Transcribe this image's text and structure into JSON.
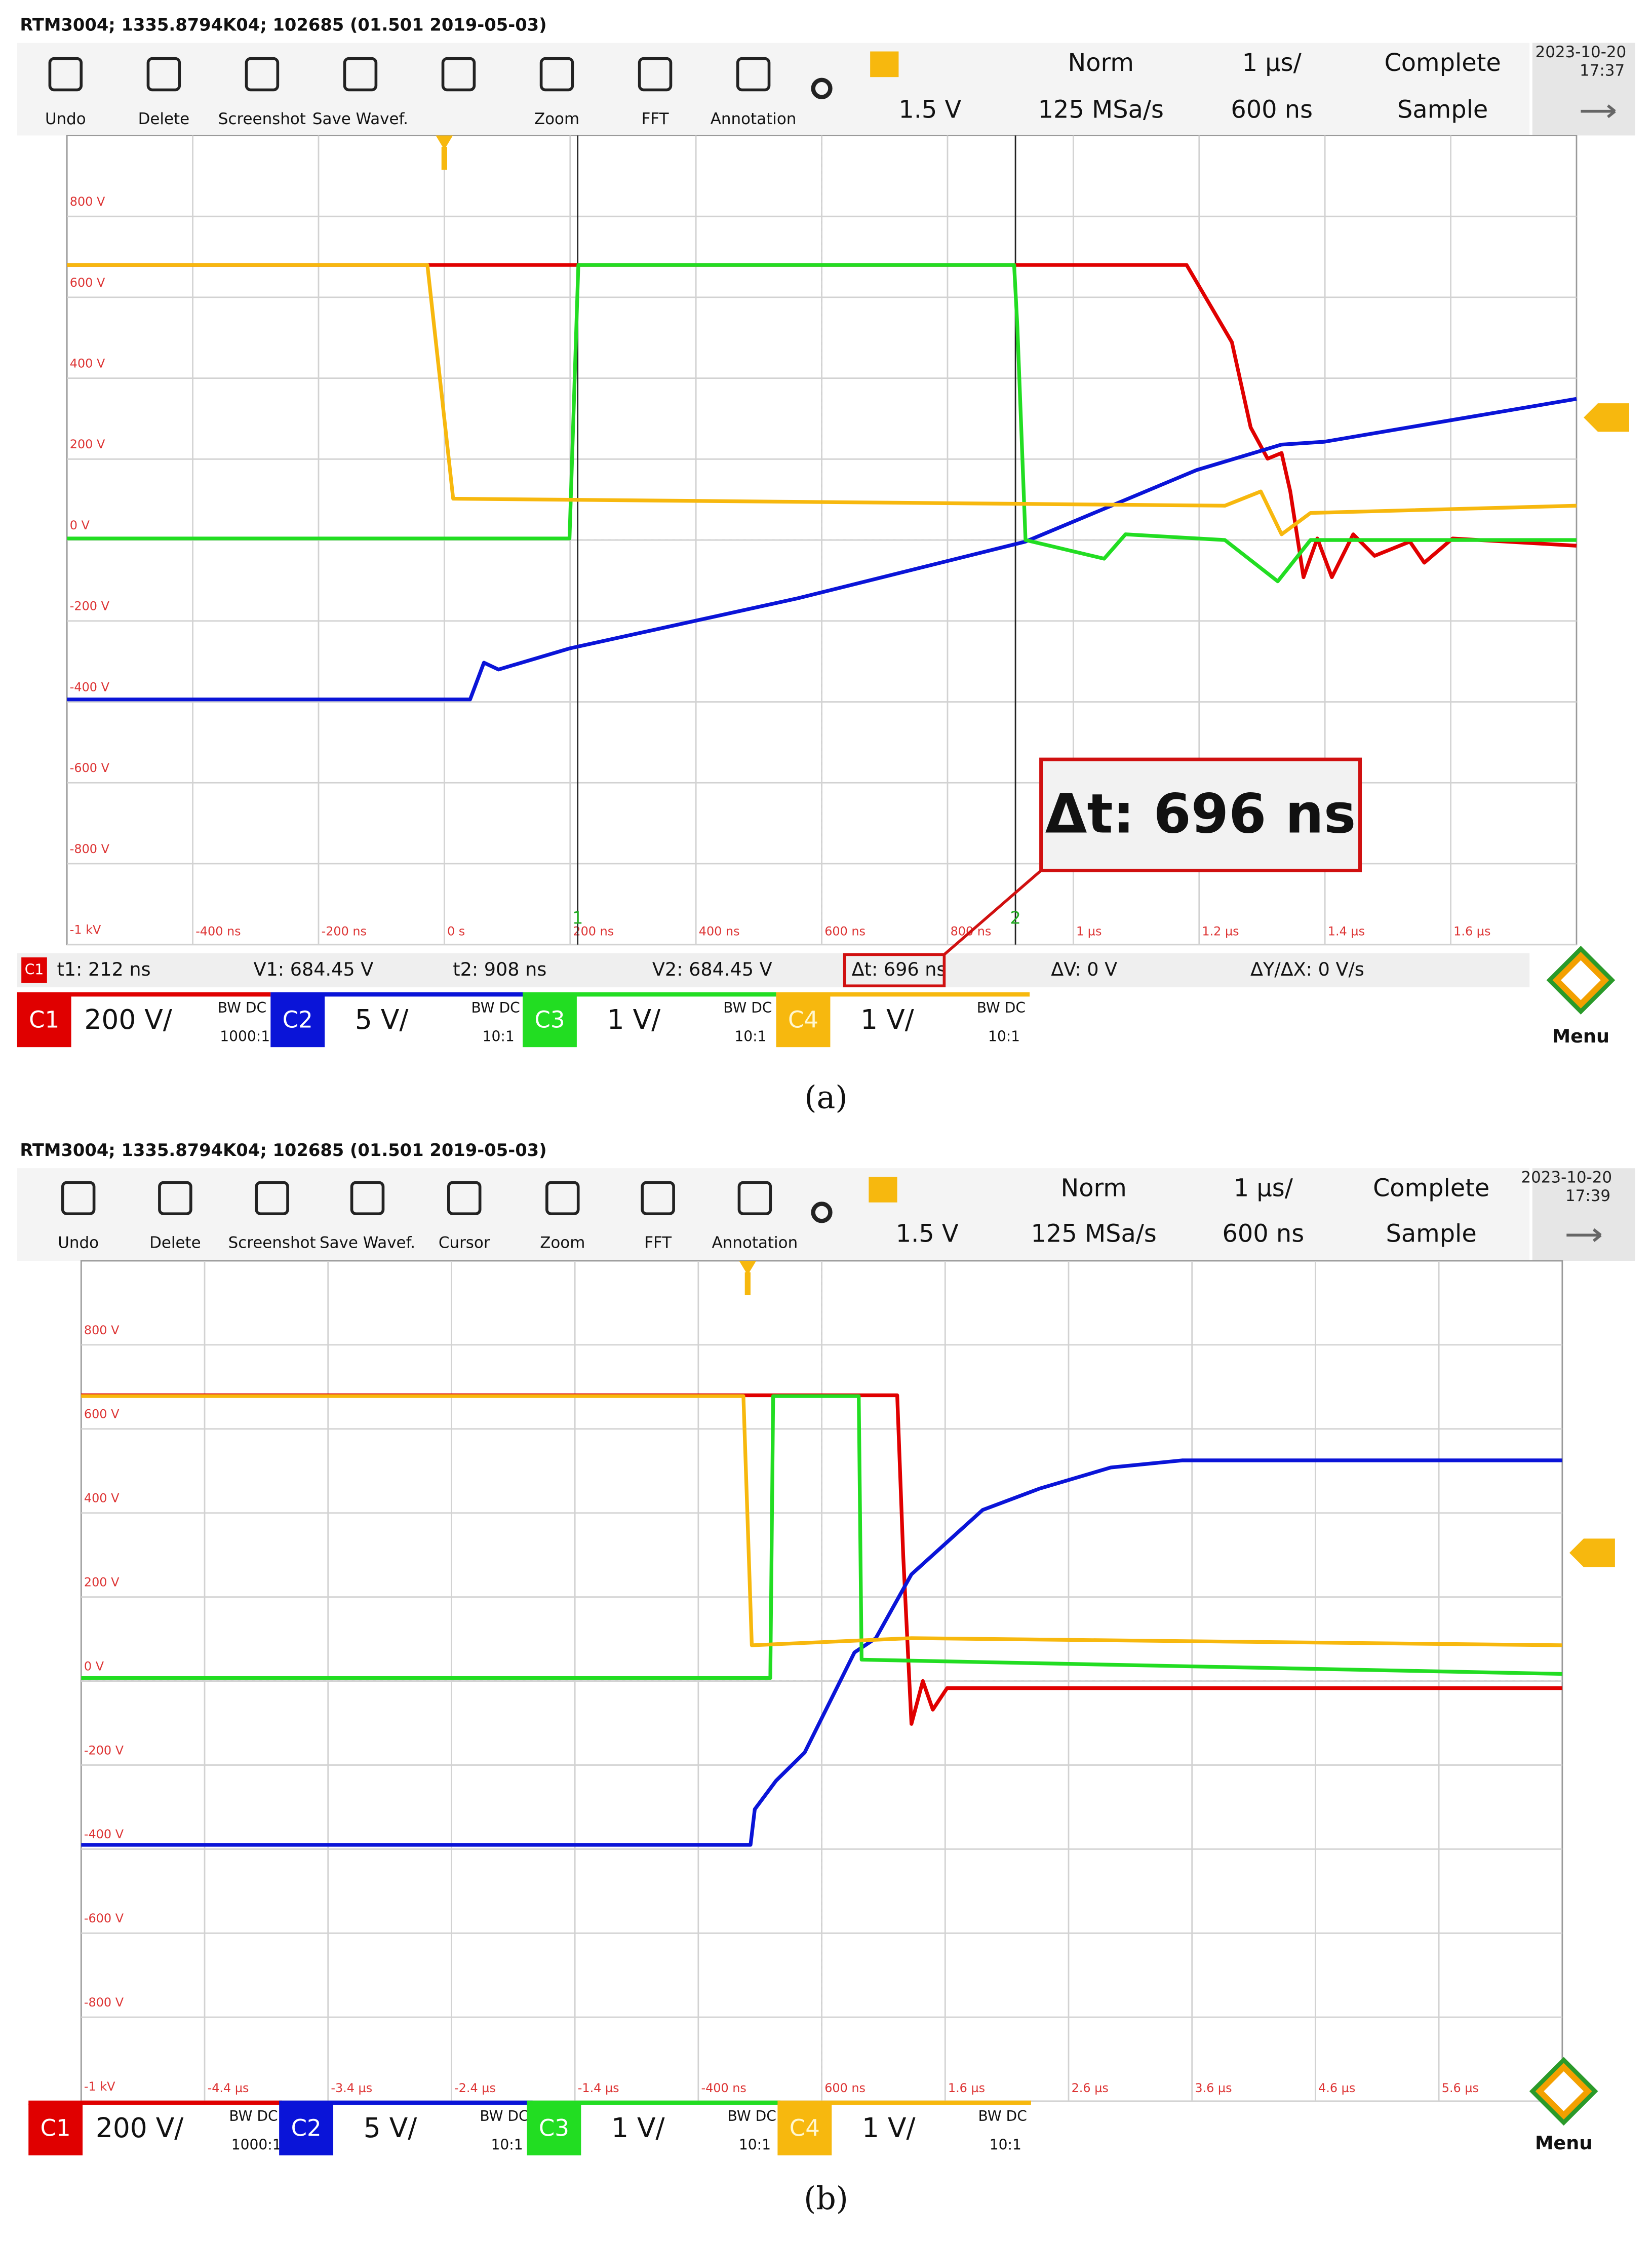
{
  "chart_data": [
    {
      "type": "line",
      "caption": "(a)",
      "header": "RTM3004; 1335.8794K04; 102685 (01.501 2019-05-03)",
      "toolbar": [
        "Undo",
        "Delete",
        "Screenshot",
        "Save Wavef.",
        "Zoom",
        "FFT",
        "Annotation"
      ],
      "trigger": {
        "level": "1.5 V",
        "mode": "Norm",
        "sample_rate": "125 MSa/s",
        "timebase": "1 µs/",
        "position": "600 ns",
        "acquisition": "Complete",
        "decimation": "Sample"
      },
      "date": "2023-10-20",
      "time": "17:37",
      "menu": "Menu",
      "channels": [
        {
          "scale": "200 V/",
          "bandwidth": "BW DC",
          "probe": "1000:1"
        },
        {
          "scale": "5 V/",
          "bandwidth": "BW DC",
          "probe": "10:1"
        },
        {
          "scale": "1 V/",
          "bandwidth": "BW DC",
          "probe": "10:1"
        },
        {
          "scale": "1 V/",
          "bandwidth": "BW DC",
          "probe": "10:1"
        }
      ],
      "cursors": {
        "readout": [
          "t1: 212 ns",
          "V1: 684.45 V",
          "t2: 908 ns",
          "V2: 684.45 V",
          "Δt: 696 ns",
          "ΔV: 0 V",
          "ΔY/ΔX: 0 V/s"
        ],
        "callout": "Δt: 696 ns",
        "markers": [
          {
            "value": 212,
            "label": "1"
          },
          {
            "value": 908,
            "label": "2"
          }
        ]
      },
      "xlim": [
        -600,
        1800
      ],
      "xticks": [
        {
          "value": -400,
          "label": "-400 ns"
        },
        {
          "value": -200,
          "label": "-200 ns"
        },
        {
          "value": 0,
          "label": "0 s"
        },
        {
          "value": 200,
          "label": "200 ns"
        },
        {
          "value": 400,
          "label": "400 ns"
        },
        {
          "value": 600,
          "label": "600 ns"
        },
        {
          "value": 800,
          "label": "800 ns"
        },
        {
          "value": 1000,
          "label": "1 µs"
        },
        {
          "value": 1200,
          "label": "1.2 µs"
        },
        {
          "value": 1400,
          "label": "1.4 µs"
        },
        {
          "value": 1600,
          "label": "1.6 µs"
        }
      ],
      "ylim": [
        -1000,
        1000
      ],
      "yticks": [
        {
          "value": 800,
          "label": "800 V"
        },
        {
          "value": 600,
          "label": "600 V"
        },
        {
          "value": 400,
          "label": "400 V"
        },
        {
          "value": 200,
          "label": "200 V"
        },
        {
          "value": 0,
          "label": "0 V"
        },
        {
          "value": -200,
          "label": "-200 V"
        },
        {
          "value": -400,
          "label": "-400 V"
        },
        {
          "value": -600,
          "label": "-600 V"
        },
        {
          "value": -800,
          "label": "-800 V"
        },
        {
          "value": -1000,
          "label": "-1 kV"
        }
      ],
      "grid": true,
      "series": [
        {
          "name": "C1",
          "color": "#e00000",
          "x": [
            -600,
            1180,
            1252,
            1282,
            1309,
            1331,
            1345,
            1366,
            1388,
            1411,
            1445,
            1479,
            1535,
            1558,
            1603,
            1800
          ],
          "values": [
            680,
            680,
            489,
            278,
            201,
            215,
            120,
            -92,
            4,
            -92,
            14,
            -39,
            -4,
            -56,
            4,
            -14
          ]
        },
        {
          "name": "C2",
          "color": "#0a14d8",
          "x": [
            -600,
            41,
            63,
            86,
            199,
            562,
            924,
            1196,
            1331,
            1399,
            1800
          ],
          "values": [
            -394,
            -394,
            -303,
            -320,
            -268,
            -144,
            -4,
            173,
            236,
            243,
            349
          ]
        },
        {
          "name": "C3",
          "color": "#22dd22",
          "x": [
            -600,
            199,
            213,
            906,
            911,
            924,
            1049,
            1083,
            1241,
            1325,
            1377,
            1800
          ],
          "values": [
            4,
            4,
            680,
            680,
            525,
            0,
            -46,
            14,
            0,
            -102,
            0,
            0
          ]
        },
        {
          "name": "C4",
          "color": "#f7b80e",
          "x": [
            -600,
            -27,
            14,
            1241,
            1298,
            1331,
            1377,
            1800
          ],
          "values": [
            680,
            680,
            102,
            85,
            120,
            14,
            67,
            85
          ]
        }
      ]
    },
    {
      "type": "line",
      "caption": "(b)",
      "header": "RTM3004; 1335.8794K04; 102685 (01.501 2019-05-03)",
      "toolbar": [
        "Undo",
        "Delete",
        "Screenshot",
        "Save Wavef.",
        "Cursor",
        "Zoom",
        "FFT",
        "Annotation"
      ],
      "trigger": {
        "level": "1.5 V",
        "mode": "Norm",
        "sample_rate": "125 MSa/s",
        "timebase": "1 µs/",
        "position": "600 ns",
        "acquisition": "Complete",
        "decimation": "Sample"
      },
      "date": "2023-10-20",
      "time": "17:39",
      "menu": "Menu",
      "channels": [
        {
          "scale": "200 V/",
          "bandwidth": "BW DC",
          "probe": "1000:1"
        },
        {
          "scale": "5 V/",
          "bandwidth": "BW DC",
          "probe": "10:1"
        },
        {
          "scale": "1 V/",
          "bandwidth": "BW DC",
          "probe": "10:1"
        },
        {
          "scale": "1 V/",
          "bandwidth": "BW DC",
          "probe": "10:1"
        }
      ],
      "xlim": [
        -5400,
        6600
      ],
      "xticks": [
        {
          "value": -4400,
          "label": "-4.4 µs"
        },
        {
          "value": -3400,
          "label": "-3.4 µs"
        },
        {
          "value": -2400,
          "label": "-2.4 µs"
        },
        {
          "value": -1400,
          "label": "-1.4 µs"
        },
        {
          "value": -400,
          "label": "-400 ns"
        },
        {
          "value": 600,
          "label": "600 ns"
        },
        {
          "value": 1600,
          "label": "1.6 µs"
        },
        {
          "value": 2600,
          "label": "2.6 µs"
        },
        {
          "value": 3600,
          "label": "3.6 µs"
        },
        {
          "value": 4600,
          "label": "4.6 µs"
        },
        {
          "value": 5600,
          "label": "5.6 µs"
        }
      ],
      "ylim": [
        -1000,
        1000
      ],
      "yticks": [
        {
          "value": 800,
          "label": "800 V"
        },
        {
          "value": 600,
          "label": "600 V"
        },
        {
          "value": 400,
          "label": "400 V"
        },
        {
          "value": 200,
          "label": "200 V"
        },
        {
          "value": 0,
          "label": "0 V"
        },
        {
          "value": -200,
          "label": "-200 V"
        },
        {
          "value": -400,
          "label": "-400 V"
        },
        {
          "value": -600,
          "label": "-600 V"
        },
        {
          "value": -800,
          "label": "-800 V"
        },
        {
          "value": -1000,
          "label": "-1 kV"
        }
      ],
      "grid": true,
      "series": [
        {
          "name": "C1",
          "color": "#e00000",
          "x": [
            -5400,
            1211,
            1260,
            1327,
            1419,
            1500,
            1615,
            6600
          ],
          "values": [
            680,
            680,
            300,
            -102,
            0,
            -68,
            -17,
            -17
          ]
        },
        {
          "name": "C2",
          "color": "#0a14d8",
          "x": [
            -5400,
            23,
            58,
            231,
            461,
            865,
            1038,
            1327,
            1904,
            2365,
            2942,
            3519,
            6600
          ],
          "values": [
            -390,
            -390,
            -305,
            -237,
            -170,
            68,
            102,
            254,
            407,
            458,
            508,
            525,
            525
          ]
        },
        {
          "name": "C3",
          "color": "#22dd22",
          "x": [
            -5400,
            184,
            207,
            900,
            923,
            6600
          ],
          "values": [
            7,
            7,
            678,
            678,
            51,
            17
          ]
        },
        {
          "name": "C4",
          "color": "#f7b80e",
          "x": [
            -5400,
            -35,
            34,
            1327,
            6600
          ],
          "values": [
            678,
            678,
            85,
            102,
            85
          ]
        }
      ]
    }
  ]
}
